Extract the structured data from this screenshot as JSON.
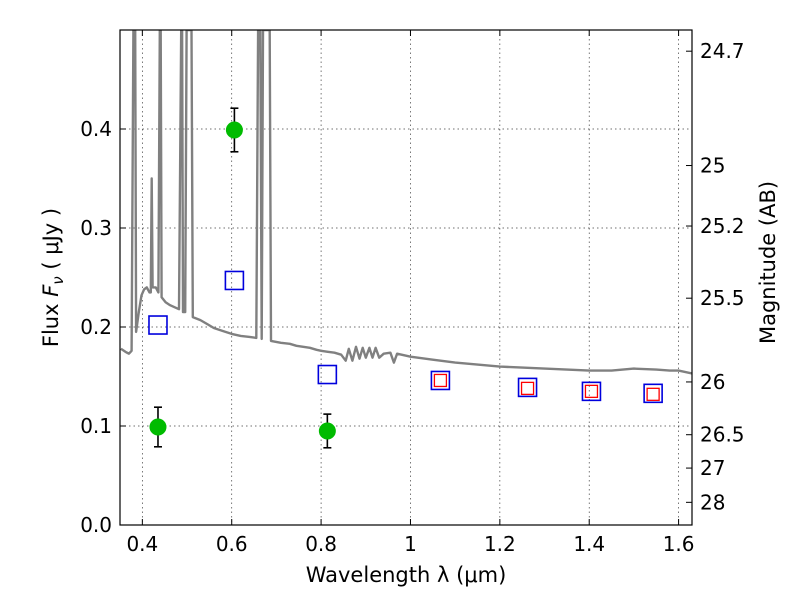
{
  "chart_data": {
    "type": "scatter",
    "xlabel": "Wavelength  λ (μm)",
    "ylabel": "Flux  F_ν  ( μJy )",
    "y2label": "Magnitude (AB)",
    "xlim": [
      0.35,
      1.63
    ],
    "ylim": [
      0.0,
      0.5
    ],
    "x_ticks": [
      0.4,
      0.6,
      0.8,
      1.0,
      1.2,
      1.4,
      1.6
    ],
    "x_tick_labels": [
      "0.4",
      "0.6",
      "0.8",
      "1",
      "1.2",
      "1.4",
      "1.6"
    ],
    "y_ticks": [
      0.0,
      0.1,
      0.2,
      0.3,
      0.4
    ],
    "y_tick_labels": [
      "0.0",
      "0.1",
      "0.2",
      "0.3",
      "0.4"
    ],
    "magnitude_ticks": [
      {
        "label": "24.7",
        "flux": 0.4786
      },
      {
        "label": "25",
        "flux": 0.3631
      },
      {
        "label": "25.2",
        "flux": 0.302
      },
      {
        "label": "25.5",
        "flux": 0.2291
      },
      {
        "label": "26",
        "flux": 0.1445
      },
      {
        "label": "26.5",
        "flux": 0.0912
      },
      {
        "label": "27",
        "flux": 0.0575
      },
      {
        "label": "28",
        "flux": 0.0229
      }
    ],
    "grid": true,
    "colors": {
      "spectrum": "#808080",
      "observed": "#00bb00",
      "model_blue": "#0000dd",
      "model_red": "#ff0000",
      "errorbar": "#000000"
    },
    "series": [
      {
        "type": "line",
        "points": [
          [
            0.352,
            0.178
          ],
          [
            0.362,
            0.175
          ],
          [
            0.37,
            0.173
          ],
          [
            0.376,
            0.176
          ],
          [
            0.38,
            0.5
          ],
          [
            0.384,
            0.5
          ],
          [
            0.386,
            0.195
          ],
          [
            0.392,
            0.215
          ],
          [
            0.398,
            0.232
          ],
          [
            0.404,
            0.238
          ],
          [
            0.41,
            0.24
          ],
          [
            0.416,
            0.235
          ],
          [
            0.419,
            0.235
          ],
          [
            0.421,
            0.35
          ],
          [
            0.423,
            0.24
          ],
          [
            0.43,
            0.24
          ],
          [
            0.436,
            0.235
          ],
          [
            0.439,
            0.5
          ],
          [
            0.441,
            0.5
          ],
          [
            0.443,
            0.23
          ],
          [
            0.452,
            0.225
          ],
          [
            0.462,
            0.222
          ],
          [
            0.472,
            0.22
          ],
          [
            0.482,
            0.218
          ],
          [
            0.487,
            0.5
          ],
          [
            0.489,
            0.5
          ],
          [
            0.491,
            0.215
          ],
          [
            0.496,
            0.215
          ],
          [
            0.499,
            0.5
          ],
          [
            0.503,
            0.5
          ],
          [
            0.506,
            0.5
          ],
          [
            0.51,
            0.5
          ],
          [
            0.513,
            0.21
          ],
          [
            0.53,
            0.207
          ],
          [
            0.545,
            0.203
          ],
          [
            0.56,
            0.199
          ],
          [
            0.58,
            0.196
          ],
          [
            0.6,
            0.193
          ],
          [
            0.62,
            0.191
          ],
          [
            0.64,
            0.19
          ],
          [
            0.655,
            0.189
          ],
          [
            0.659,
            0.5
          ],
          [
            0.664,
            0.5
          ],
          [
            0.667,
            0.188
          ],
          [
            0.67,
            0.5
          ],
          [
            0.685,
            0.5
          ],
          [
            0.688,
            0.186
          ],
          [
            0.71,
            0.184
          ],
          [
            0.73,
            0.183
          ],
          [
            0.745,
            0.181
          ],
          [
            0.76,
            0.18
          ],
          [
            0.775,
            0.179
          ],
          [
            0.79,
            0.177
          ],
          [
            0.8,
            0.176
          ],
          [
            0.815,
            0.175
          ],
          [
            0.83,
            0.174
          ],
          [
            0.845,
            0.172
          ],
          [
            0.855,
            0.166
          ],
          [
            0.862,
            0.178
          ],
          [
            0.87,
            0.166
          ],
          [
            0.878,
            0.18
          ],
          [
            0.886,
            0.168
          ],
          [
            0.893,
            0.179
          ],
          [
            0.9,
            0.169
          ],
          [
            0.908,
            0.179
          ],
          [
            0.915,
            0.169
          ],
          [
            0.922,
            0.179
          ],
          [
            0.93,
            0.169
          ],
          [
            0.94,
            0.173
          ],
          [
            0.955,
            0.174
          ],
          [
            0.963,
            0.164
          ],
          [
            0.97,
            0.173
          ],
          [
            1.0,
            0.17
          ],
          [
            1.05,
            0.167
          ],
          [
            1.1,
            0.164
          ],
          [
            1.15,
            0.162
          ],
          [
            1.2,
            0.16
          ],
          [
            1.25,
            0.159
          ],
          [
            1.3,
            0.158
          ],
          [
            1.35,
            0.157
          ],
          [
            1.4,
            0.156
          ],
          [
            1.45,
            0.156
          ],
          [
            1.5,
            0.158
          ],
          [
            1.55,
            0.157
          ],
          [
            1.58,
            0.156
          ],
          [
            1.6,
            0.156
          ],
          [
            1.63,
            0.153
          ]
        ]
      },
      {
        "type": "scatter",
        "marker": "circle",
        "points": [
          {
            "x": 0.435,
            "y": 0.099,
            "err": 0.02
          },
          {
            "x": 0.606,
            "y": 0.399,
            "err": 0.022
          },
          {
            "x": 0.814,
            "y": 0.095,
            "err": 0.017
          }
        ]
      },
      {
        "type": "scatter",
        "marker": "open-square",
        "points": [
          {
            "x": 0.435,
            "y": 0.202
          },
          {
            "x": 0.606,
            "y": 0.247
          },
          {
            "x": 0.814,
            "y": 0.152
          },
          {
            "x": 1.067,
            "y": 0.146
          },
          {
            "x": 1.262,
            "y": 0.139
          },
          {
            "x": 1.405,
            "y": 0.135
          },
          {
            "x": 1.543,
            "y": 0.133
          }
        ]
      },
      {
        "type": "scatter",
        "marker": "small-open-square",
        "points": [
          {
            "x": 1.067,
            "y": 0.146
          },
          {
            "x": 1.262,
            "y": 0.138
          },
          {
            "x": 1.405,
            "y": 0.135
          },
          {
            "x": 1.543,
            "y": 0.132
          }
        ]
      }
    ]
  }
}
